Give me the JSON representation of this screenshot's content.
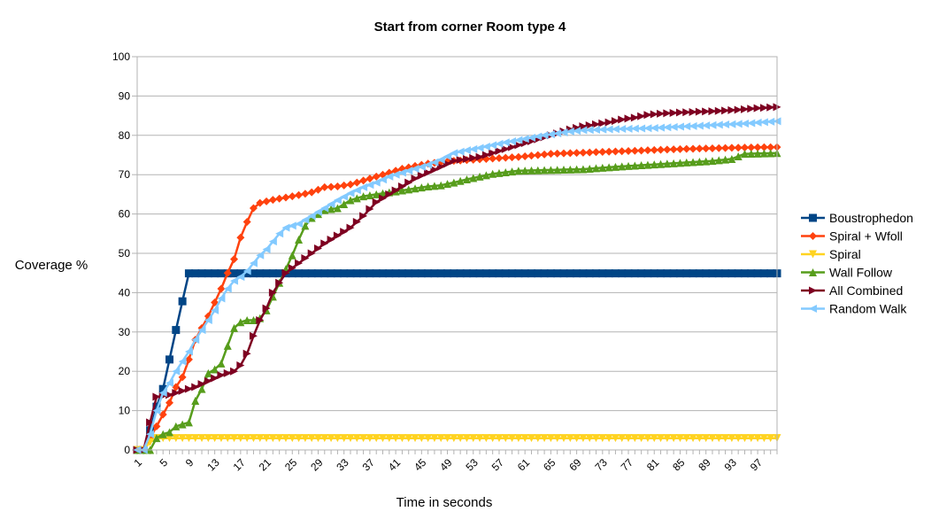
{
  "chart_data": {
    "type": "line",
    "title": "Start from corner Room type 4",
    "xlabel": "Time in seconds",
    "ylabel": "Coverage %",
    "xlim": [
      1,
      100
    ],
    "ylim": [
      0,
      100
    ],
    "y_ticks": [
      0,
      10,
      20,
      30,
      40,
      50,
      60,
      70,
      80,
      90,
      100
    ],
    "x_ticks": [
      1,
      5,
      9,
      13,
      17,
      21,
      25,
      29,
      33,
      37,
      41,
      45,
      49,
      53,
      57,
      61,
      65,
      69,
      73,
      77,
      81,
      85,
      89,
      93,
      97
    ],
    "grid": "horizontal",
    "legend": "right",
    "series": [
      {
        "name": "Boustrophedon",
        "color": "#004586",
        "marker": "square",
        "keypoints": [
          [
            1,
            0
          ],
          [
            2,
            0
          ],
          [
            3,
            5
          ],
          [
            4,
            11
          ],
          [
            5,
            15.5
          ],
          [
            6,
            23
          ],
          [
            7,
            30.5
          ],
          [
            8,
            37.8
          ],
          [
            9,
            44.9
          ],
          [
            100,
            44.9
          ]
        ]
      },
      {
        "name": "Spiral + Wfoll",
        "color": "#ff420e",
        "marker": "diamond",
        "keypoints": [
          [
            1,
            0
          ],
          [
            2,
            0
          ],
          [
            3,
            3
          ],
          [
            4,
            6
          ],
          [
            5,
            9
          ],
          [
            6,
            12
          ],
          [
            7,
            16
          ],
          [
            8,
            18.5
          ],
          [
            9,
            23
          ],
          [
            10,
            28
          ],
          [
            11,
            31
          ],
          [
            12,
            34
          ],
          [
            13,
            37.5
          ],
          [
            14,
            41
          ],
          [
            15,
            45
          ],
          [
            16,
            48.5
          ],
          [
            17,
            54
          ],
          [
            18,
            58
          ],
          [
            19,
            61.5
          ],
          [
            20,
            62.8
          ],
          [
            21,
            63.2
          ],
          [
            22,
            63.6
          ],
          [
            24,
            64.2
          ],
          [
            26,
            64.8
          ],
          [
            28,
            65.5
          ],
          [
            30,
            66.8
          ],
          [
            32,
            67
          ],
          [
            34,
            67.5
          ],
          [
            36,
            68.5
          ],
          [
            38,
            69.5
          ],
          [
            40,
            70.5
          ],
          [
            42,
            71.5
          ],
          [
            44,
            72.2
          ],
          [
            46,
            72.8
          ],
          [
            48,
            73.2
          ],
          [
            50,
            73.5
          ],
          [
            55,
            74
          ],
          [
            60,
            74.5
          ],
          [
            65,
            75.3
          ],
          [
            70,
            75.6
          ],
          [
            75,
            75.9
          ],
          [
            80,
            76.2
          ],
          [
            85,
            76.5
          ],
          [
            90,
            76.7
          ],
          [
            95,
            76.9
          ],
          [
            100,
            77
          ]
        ]
      },
      {
        "name": "Spiral",
        "color": "#ffd320",
        "marker": "triangle-down",
        "keypoints": [
          [
            1,
            0
          ],
          [
            2,
            0
          ],
          [
            3,
            2
          ],
          [
            4,
            3
          ],
          [
            5,
            3
          ],
          [
            100,
            3
          ]
        ]
      },
      {
        "name": "Wall Follow",
        "color": "#579d1c",
        "marker": "triangle-up",
        "keypoints": [
          [
            1,
            0
          ],
          [
            2,
            0
          ],
          [
            3,
            0
          ],
          [
            4,
            3
          ],
          [
            5,
            4
          ],
          [
            6,
            4.5
          ],
          [
            7,
            6
          ],
          [
            8,
            6.5
          ],
          [
            9,
            7
          ],
          [
            10,
            12.5
          ],
          [
            11,
            15.5
          ],
          [
            12,
            19.5
          ],
          [
            13,
            20.5
          ],
          [
            14,
            22
          ],
          [
            15,
            26.5
          ],
          [
            16,
            31
          ],
          [
            17,
            32.5
          ],
          [
            18,
            33
          ],
          [
            19,
            33
          ],
          [
            20,
            33.5
          ],
          [
            21,
            35.5
          ],
          [
            22,
            39
          ],
          [
            23,
            42.5
          ],
          [
            24,
            46
          ],
          [
            25,
            49.5
          ],
          [
            26,
            53.5
          ],
          [
            27,
            57
          ],
          [
            28,
            59
          ],
          [
            29,
            60
          ],
          [
            30,
            61
          ],
          [
            32,
            61.5
          ],
          [
            34,
            63.5
          ],
          [
            36,
            64.5
          ],
          [
            38,
            65
          ],
          [
            40,
            65.5
          ],
          [
            42,
            66
          ],
          [
            44,
            66.5
          ],
          [
            46,
            67
          ],
          [
            48,
            67.3
          ],
          [
            50,
            68
          ],
          [
            52,
            68.8
          ],
          [
            54,
            69.5
          ],
          [
            56,
            70.2
          ],
          [
            58,
            70.6
          ],
          [
            60,
            71
          ],
          [
            65,
            71.2
          ],
          [
            70,
            71.4
          ],
          [
            75,
            72
          ],
          [
            80,
            72.5
          ],
          [
            85,
            73
          ],
          [
            90,
            73.5
          ],
          [
            93,
            74
          ],
          [
            95,
            75.3
          ],
          [
            100,
            75.5
          ]
        ]
      },
      {
        "name": "All Combined",
        "color": "#7e0021",
        "marker": "triangle-right",
        "keypoints": [
          [
            1,
            0
          ],
          [
            2,
            0
          ],
          [
            3,
            7
          ],
          [
            4,
            13.5
          ],
          [
            6,
            14
          ],
          [
            8,
            15
          ],
          [
            10,
            16
          ],
          [
            12,
            17.5
          ],
          [
            14,
            19
          ],
          [
            16,
            20
          ],
          [
            17,
            21.5
          ],
          [
            18,
            24.5
          ],
          [
            19,
            29
          ],
          [
            20,
            33
          ],
          [
            21,
            36
          ],
          [
            22,
            40
          ],
          [
            23,
            42.5
          ],
          [
            24,
            45
          ],
          [
            26,
            47.5
          ],
          [
            28,
            50
          ],
          [
            30,
            52.5
          ],
          [
            32,
            54.5
          ],
          [
            34,
            56.5
          ],
          [
            36,
            59.5
          ],
          [
            38,
            63
          ],
          [
            40,
            65
          ],
          [
            42,
            67
          ],
          [
            44,
            69
          ],
          [
            46,
            70.5
          ],
          [
            48,
            72
          ],
          [
            50,
            73.5
          ],
          [
            52,
            74
          ],
          [
            54,
            74.5
          ],
          [
            56,
            75.5
          ],
          [
            58,
            76.5
          ],
          [
            60,
            77.5
          ],
          [
            62,
            78.5
          ],
          [
            64,
            79.5
          ],
          [
            66,
            80.5
          ],
          [
            68,
            81.5
          ],
          [
            70,
            82.3
          ],
          [
            72,
            82.8
          ],
          [
            74,
            83.3
          ],
          [
            76,
            84
          ],
          [
            78,
            84.5
          ],
          [
            80,
            85.2
          ],
          [
            82,
            85.5
          ],
          [
            85,
            85.8
          ],
          [
            88,
            86
          ],
          [
            91,
            86.2
          ],
          [
            94,
            86.5
          ],
          [
            97,
            86.9
          ],
          [
            100,
            87.2
          ]
        ]
      },
      {
        "name": "Random Walk",
        "color": "#83caff",
        "marker": "triangle-left",
        "keypoints": [
          [
            1,
            0
          ],
          [
            2,
            0
          ],
          [
            3,
            4
          ],
          [
            4,
            10
          ],
          [
            5,
            14.5
          ],
          [
            6,
            17
          ],
          [
            7,
            20
          ],
          [
            8,
            22.5
          ],
          [
            9,
            25
          ],
          [
            10,
            28
          ],
          [
            11,
            30.5
          ],
          [
            12,
            33
          ],
          [
            13,
            35.5
          ],
          [
            14,
            38.5
          ],
          [
            15,
            41
          ],
          [
            16,
            43
          ],
          [
            17,
            44
          ],
          [
            18,
            45.5
          ],
          [
            19,
            47.5
          ],
          [
            20,
            49.5
          ],
          [
            21,
            51
          ],
          [
            22,
            53
          ],
          [
            23,
            55
          ],
          [
            24,
            56.5
          ],
          [
            25,
            57
          ],
          [
            26,
            57.5
          ],
          [
            28,
            59.5
          ],
          [
            30,
            61.5
          ],
          [
            32,
            63.5
          ],
          [
            34,
            65.3
          ],
          [
            36,
            66.8
          ],
          [
            38,
            68
          ],
          [
            40,
            69.5
          ],
          [
            42,
            70.5
          ],
          [
            44,
            71.5
          ],
          [
            46,
            72.5
          ],
          [
            48,
            73.8
          ],
          [
            50,
            75.5
          ],
          [
            52,
            76.2
          ],
          [
            54,
            76.8
          ],
          [
            56,
            77.5
          ],
          [
            58,
            78.2
          ],
          [
            60,
            78.8
          ],
          [
            62,
            79.4
          ],
          [
            64,
            80
          ],
          [
            66,
            80.5
          ],
          [
            68,
            81
          ],
          [
            70,
            81.3
          ],
          [
            75,
            81.6
          ],
          [
            80,
            81.8
          ],
          [
            85,
            82.2
          ],
          [
            90,
            82.6
          ],
          [
            95,
            83
          ],
          [
            100,
            83.6
          ]
        ]
      }
    ]
  }
}
